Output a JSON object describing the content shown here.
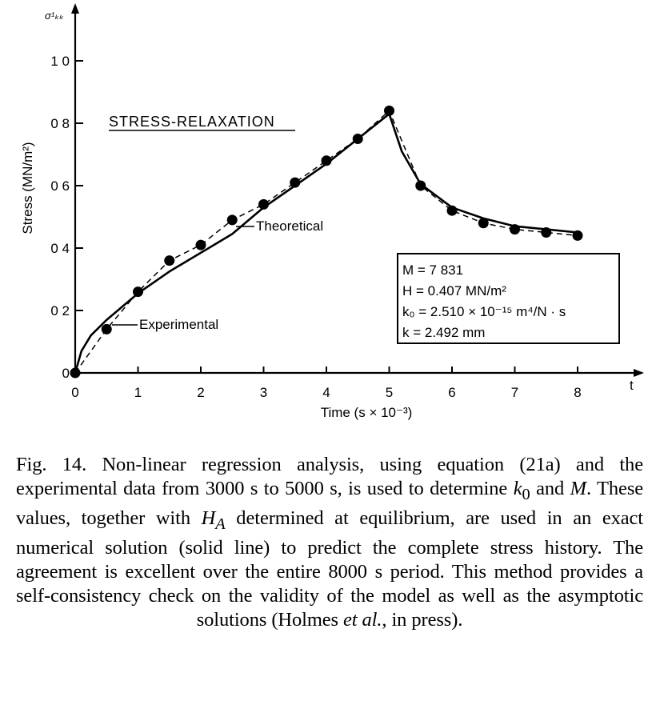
{
  "chart_data": {
    "type": "line",
    "title": "STRESS-RELAXATION",
    "xlabel": "Time (s × 10⁻³)",
    "ylabel": "Stress (MN/m²)",
    "x_end_label": "t",
    "y_top_label": "σ¹ₖₖ",
    "xlim": [
      0,
      8
    ],
    "ylim": [
      0,
      1.0
    ],
    "x_ticks": [
      0,
      1,
      2,
      3,
      4,
      5,
      6,
      7,
      8
    ],
    "x_tick_labels": [
      "0",
      "1",
      "2",
      "3",
      "4",
      "5",
      "6",
      "7",
      "8"
    ],
    "y_ticks": [
      0,
      0.2,
      0.4,
      0.6,
      0.8,
      1.0
    ],
    "y_tick_labels": [
      "0",
      "0 2",
      "0 4",
      "0 6",
      "0 8",
      "1 0"
    ],
    "series": [
      {
        "name": "Experimental",
        "style": "dashed-markers",
        "x": [
          0,
          0.5,
          1.0,
          1.5,
          2.0,
          2.5,
          3.0,
          3.5,
          4.0,
          4.5,
          5.0,
          5.5,
          6.0,
          6.5,
          7.0,
          7.5,
          8.0
        ],
        "y": [
          0,
          0.14,
          0.26,
          0.36,
          0.41,
          0.49,
          0.54,
          0.61,
          0.68,
          0.75,
          0.84,
          0.6,
          0.52,
          0.48,
          0.46,
          0.45,
          0.44
        ]
      },
      {
        "name": "Theoretical",
        "style": "solid",
        "x": [
          0,
          0.1,
          0.25,
          0.5,
          1.0,
          1.5,
          2.0,
          2.5,
          3.0,
          3.5,
          4.0,
          4.5,
          5.0,
          5.2,
          5.5,
          6.0,
          6.5,
          7.0,
          7.5,
          8.0
        ],
        "y": [
          0,
          0.07,
          0.12,
          0.17,
          0.255,
          0.325,
          0.385,
          0.445,
          0.53,
          0.6,
          0.67,
          0.75,
          0.83,
          0.71,
          0.605,
          0.53,
          0.495,
          0.47,
          0.46,
          0.45
        ]
      }
    ],
    "annotations": {
      "experimental": "Experimental",
      "theoretical": "Theoretical"
    },
    "parameters": [
      "M = 7 831",
      "H = 0.407 MN/m²",
      "k₀ = 2.510 × 10⁻¹⁵ m⁴/N · s",
      "k = 2.492 mm"
    ]
  },
  "caption": {
    "fig_label": "Fig. 14.",
    "text_1": " Non-linear regression analysis, using equation (21a) and the experimental data from 3000 s to 5000 s, is used to determine ",
    "k0_symbol": "k",
    "k0_sub": "0",
    "text_2": " and ",
    "m_symbol": "M",
    "text_3": ". These values, together with ",
    "ha_symbol": "H",
    "ha_sub": "A",
    "text_4": " determined at equilibrium, are used in an exact numerical solution (solid line) to predict the complete stress history. The agreement is excellent over the entire 8000 s period. This method provides a self-consistency check on the validity of the model as well as the asymptotic solutions (Holmes ",
    "et_al": "et al.",
    "text_5": ", in press)."
  }
}
